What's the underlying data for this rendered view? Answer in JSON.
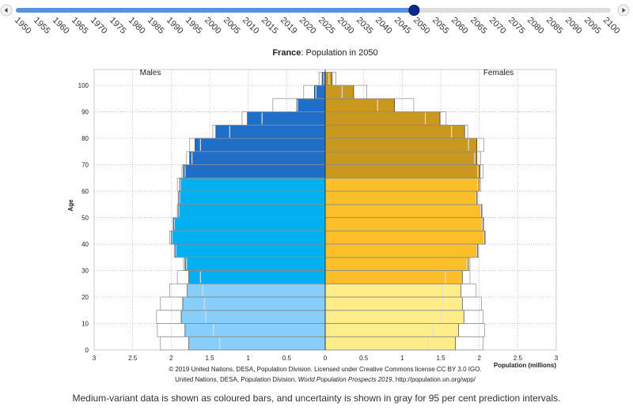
{
  "slider": {
    "years": [
      1950,
      1955,
      1960,
      1965,
      1970,
      1975,
      1980,
      1985,
      1990,
      1995,
      2000,
      2005,
      2010,
      2015,
      2019,
      2020,
      2025,
      2030,
      2035,
      2040,
      2045,
      2050,
      2055,
      2060,
      2065,
      2070,
      2075,
      2080,
      2085,
      2090,
      2095,
      2100
    ],
    "selected": 2050
  },
  "chart_data": {
    "type": "pyramid",
    "title_bold": "France",
    "title_rest": ": Population in 2050",
    "y_label": "Age",
    "x_label": "Population (millions)",
    "y": [
      0,
      5,
      10,
      15,
      20,
      25,
      30,
      35,
      40,
      45,
      50,
      55,
      60,
      65,
      70,
      75,
      80,
      85,
      90,
      95,
      100
    ],
    "series": [
      {
        "name": "Males",
        "colors": [
          "#87cefa",
          "#87cefa",
          "#87cefa",
          "#87cefa",
          "#87cefa",
          "#00b0f0",
          "#00b0f0",
          "#00b0f0",
          "#00b0f0",
          "#00b0f0",
          "#00b0f0",
          "#00b0f0",
          "#00b0f0",
          "#1f6fc8",
          "#1f6fc8",
          "#1f6fc8",
          "#1f6fc8",
          "#1f6fc8",
          "#1f6fc8",
          "#1f6fc8",
          "#1f6fc8"
        ],
        "values": [
          1.77,
          1.82,
          1.87,
          1.85,
          1.79,
          1.77,
          1.82,
          1.95,
          2.0,
          1.97,
          1.91,
          1.9,
          1.89,
          1.84,
          1.76,
          1.69,
          1.42,
          1.01,
          0.37,
          0.14,
          0.04
        ],
        "upper": [
          2.14,
          2.18,
          2.19,
          2.14,
          2.02,
          1.92,
          1.84,
          1.96,
          2.02,
          1.98,
          1.92,
          1.91,
          1.92,
          1.86,
          1.8,
          1.76,
          1.46,
          1.08,
          0.68,
          0.28,
          0.08
        ],
        "lower": [
          1.37,
          1.45,
          1.55,
          1.57,
          1.59,
          1.62,
          1.8,
          1.94,
          1.99,
          1.96,
          1.9,
          1.89,
          1.88,
          1.82,
          1.73,
          1.62,
          1.24,
          0.82,
          0.36,
          0.12,
          0.02
        ]
      },
      {
        "name": "Females",
        "colors": [
          "#ffed8a",
          "#ffed8a",
          "#ffed8a",
          "#ffed8a",
          "#ffed8a",
          "#fcbf2a",
          "#fcbf2a",
          "#fcbf2a",
          "#fcbf2a",
          "#fcbf2a",
          "#fcbf2a",
          "#fcbf2a",
          "#fcbf2a",
          "#c9981e",
          "#c9981e",
          "#c9981e",
          "#c9981e",
          "#c9981e",
          "#c9981e",
          "#c9981e",
          "#c9981e"
        ],
        "values": [
          1.69,
          1.73,
          1.8,
          1.78,
          1.76,
          1.78,
          1.86,
          1.98,
          2.07,
          2.05,
          2.03,
          1.97,
          2.0,
          2.01,
          1.97,
          1.97,
          1.81,
          1.49,
          0.9,
          0.37,
          0.09
        ],
        "upper": [
          2.05,
          2.07,
          2.05,
          2.03,
          1.96,
          1.88,
          1.88,
          1.99,
          2.08,
          2.06,
          2.04,
          1.98,
          2.02,
          2.05,
          2.02,
          2.06,
          1.85,
          1.57,
          1.15,
          0.54,
          0.14
        ],
        "lower": [
          1.33,
          1.4,
          1.5,
          1.52,
          1.52,
          1.56,
          1.84,
          1.97,
          2.06,
          2.04,
          2.02,
          1.96,
          1.98,
          1.98,
          1.94,
          1.86,
          1.64,
          1.3,
          0.68,
          0.22,
          0.05
        ]
      }
    ],
    "bar_height": 5,
    "xlim": [
      -3,
      3
    ],
    "xticks": [
      {
        "value": -3,
        "label": "3"
      },
      {
        "value": -2.5,
        "label": "2.5"
      },
      {
        "value": -2,
        "label": "2"
      },
      {
        "value": -1.5,
        "label": "1.5"
      },
      {
        "value": -1,
        "label": "1"
      },
      {
        "value": -0.5,
        "label": "0.5"
      },
      0,
      0.5,
      1,
      1.5,
      2,
      2.5,
      3
    ],
    "ylim": [
      0,
      106
    ],
    "yticks": [
      0,
      10,
      20,
      30,
      40,
      50,
      60,
      70,
      80,
      90,
      100
    ],
    "grid": true,
    "credit_1": "© 2019 United Nations, DESA, Population Division. Licensed under Creative Commons license CC BY 3.0 IGO.",
    "credit_2": [
      "United Nations, DESA, Population Division. ",
      "World Population Prospects 2019",
      ". http://population.un.org/wpp/"
    ]
  },
  "footnote": "Medium-variant data is shown as coloured bars, and uncertainty is shown in gray for 95 per cent prediction intervals."
}
